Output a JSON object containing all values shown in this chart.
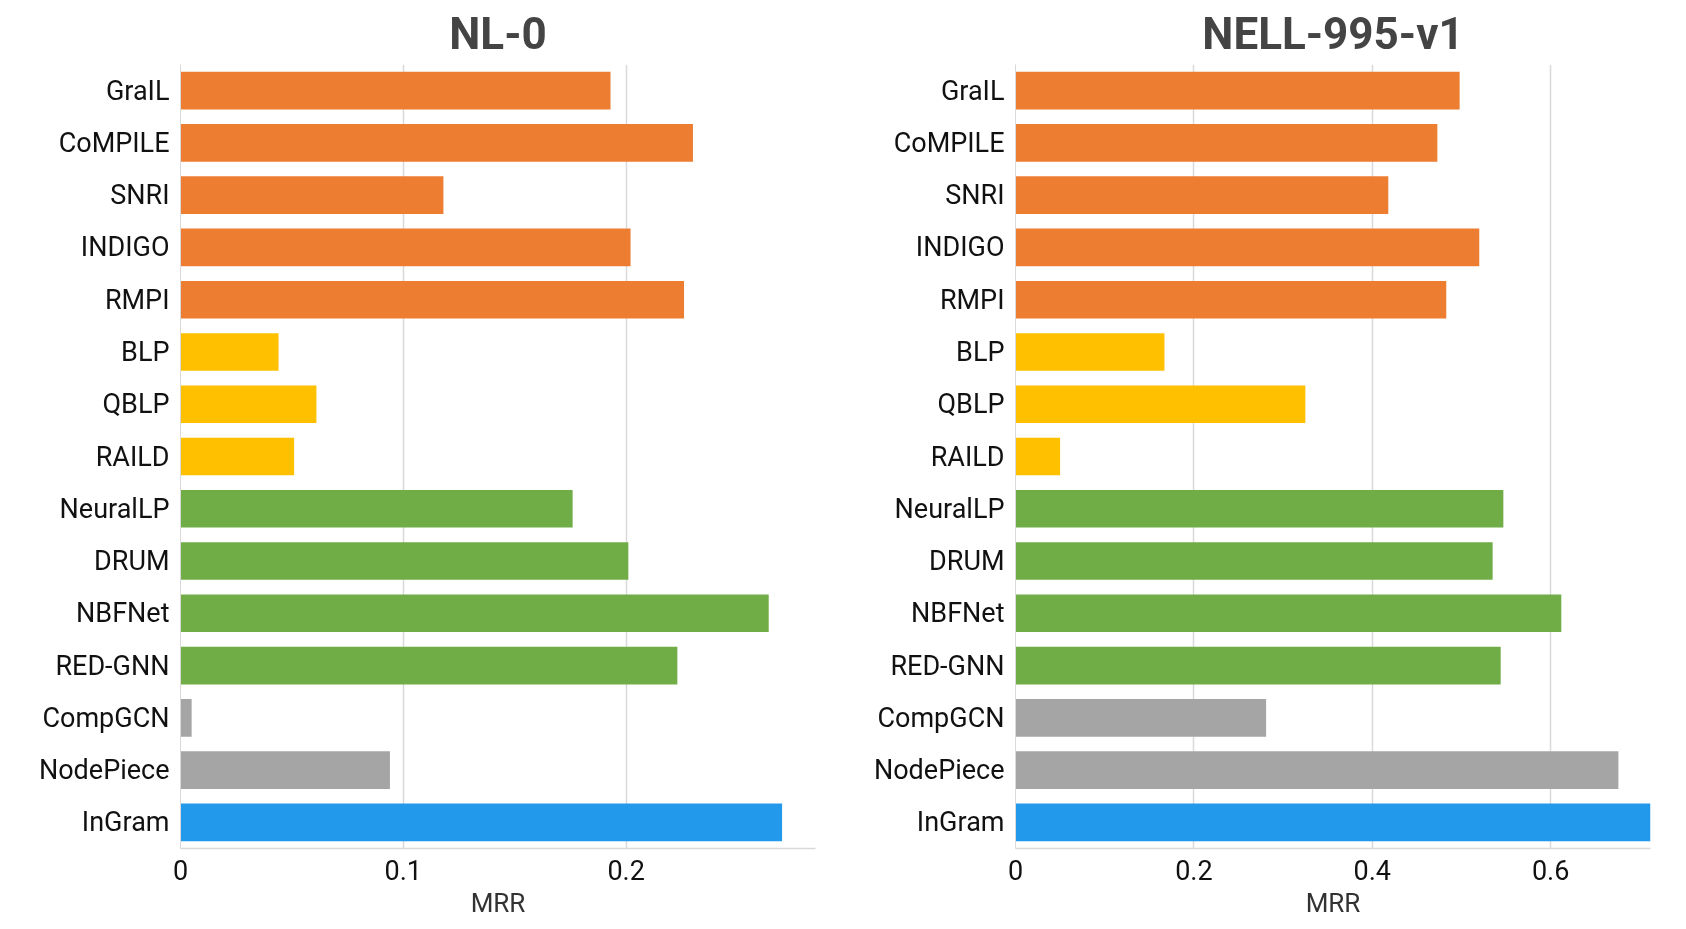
{
  "chart_data": [
    {
      "type": "bar",
      "orientation": "horizontal",
      "title": "NL-0",
      "xlabel": "MRR",
      "categories": [
        "GraIL",
        "CoMPILE",
        "SNRI",
        "INDIGO",
        "RMPI",
        "BLP",
        "QBLP",
        "RAILD",
        "NeuralLP",
        "DRUM",
        "NBFNet",
        "RED-GNN",
        "CompGCN",
        "NodePiece",
        "InGram"
      ],
      "values": [
        0.193,
        0.23,
        0.118,
        0.202,
        0.226,
        0.044,
        0.061,
        0.051,
        0.176,
        0.201,
        0.264,
        0.223,
        0.005,
        0.094,
        0.27
      ],
      "colors": [
        "#ed7d31",
        "#ed7d31",
        "#ed7d31",
        "#ed7d31",
        "#ed7d31",
        "#ffc000",
        "#ffc000",
        "#ffc000",
        "#70ad47",
        "#70ad47",
        "#70ad47",
        "#70ad47",
        "#a5a5a5",
        "#a5a5a5",
        "#2299ea"
      ],
      "xlim": [
        0,
        0.285
      ],
      "xticks": [
        0,
        0.1,
        0.2
      ],
      "grid": "x"
    },
    {
      "type": "bar",
      "orientation": "horizontal",
      "title": "NELL-995-v1",
      "xlabel": "MRR",
      "categories": [
        "GraIL",
        "CoMPILE",
        "SNRI",
        "INDIGO",
        "RMPI",
        "BLP",
        "QBLP",
        "RAILD",
        "NeuralLP",
        "DRUM",
        "NBFNet",
        "RED-GNN",
        "CompGCN",
        "NodePiece",
        "InGram"
      ],
      "values": [
        0.498,
        0.473,
        0.418,
        0.52,
        0.483,
        0.167,
        0.325,
        0.05,
        0.547,
        0.535,
        0.612,
        0.544,
        0.281,
        0.676,
        0.712
      ],
      "colors": [
        "#ed7d31",
        "#ed7d31",
        "#ed7d31",
        "#ed7d31",
        "#ed7d31",
        "#ffc000",
        "#ffc000",
        "#ffc000",
        "#70ad47",
        "#70ad47",
        "#70ad47",
        "#70ad47",
        "#a5a5a5",
        "#a5a5a5",
        "#2299ea"
      ],
      "xlim": [
        0,
        0.712
      ],
      "xticks": [
        0,
        0.2,
        0.4,
        0.6
      ],
      "grid": "x"
    }
  ]
}
